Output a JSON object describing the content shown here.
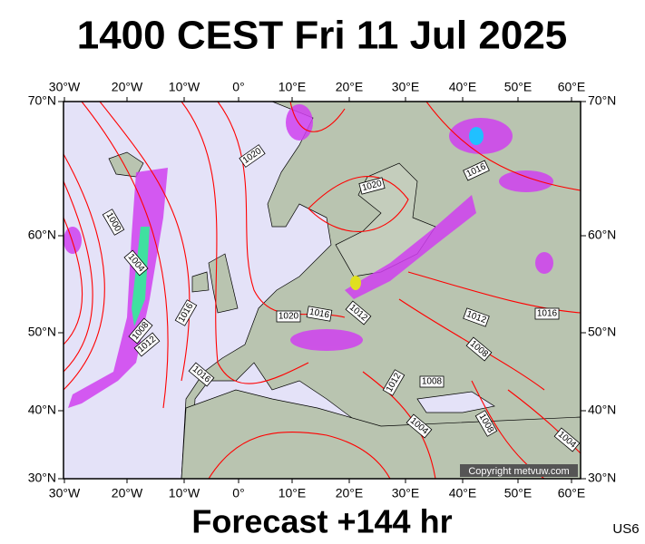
{
  "map": {
    "title": "1400 CEST Fri 11 Jul 2025",
    "footer": "Forecast +144 hr",
    "model": "US6",
    "copyright": "Copyright metvuw.com",
    "lon_labels": [
      "30°W",
      "20°W",
      "10°W",
      "0°",
      "10°E",
      "20°E",
      "30°E",
      "40°E",
      "50°E",
      "60°E"
    ],
    "lat_labels": [
      "70°N",
      "60°N",
      "50°N",
      "40°N",
      "30°N"
    ],
    "isobar_labels": [
      "1020",
      "1020",
      "1016",
      "1000",
      "1004",
      "1016",
      "1020",
      "1016",
      "1012",
      "1008",
      "1012",
      "1012",
      "1016",
      "1008",
      "1016",
      "1012",
      "1008",
      "1004",
      "1008",
      "1004"
    ]
  }
}
